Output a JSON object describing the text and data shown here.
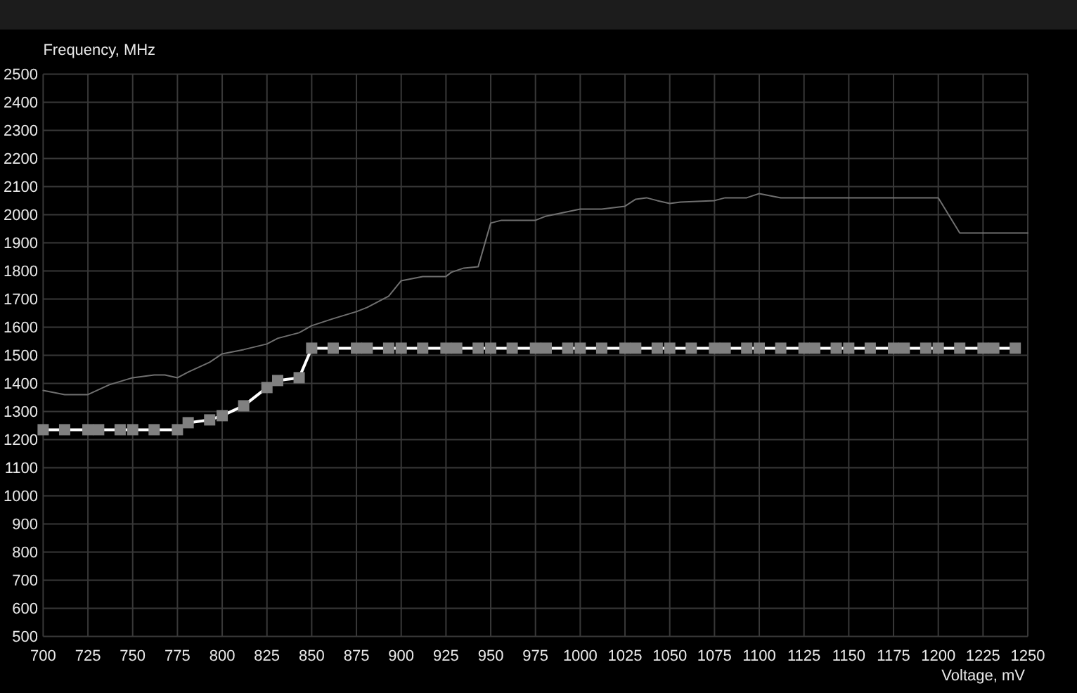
{
  "chart_data": {
    "type": "line",
    "xlabel": "Voltage, mV",
    "ylabel": "Frequency, MHz",
    "xlim": [
      700,
      1250
    ],
    "xticks": [
      700,
      725,
      750,
      775,
      800,
      825,
      850,
      875,
      900,
      925,
      950,
      975,
      1000,
      1025,
      1050,
      1075,
      1100,
      1125,
      1150,
      1175,
      1200,
      1225,
      1250
    ],
    "ylim": [
      500,
      2500
    ],
    "yticks": [
      500,
      600,
      700,
      800,
      900,
      1000,
      1100,
      1200,
      1300,
      1400,
      1500,
      1600,
      1700,
      1800,
      1900,
      2000,
      2100,
      2200,
      2300,
      2400,
      2500
    ],
    "grid": true,
    "series": [
      {
        "color": "#707070",
        "x": [
          700,
          712,
          725,
          737,
          750,
          762,
          768,
          775,
          781,
          793,
          800,
          812,
          825,
          831,
          843,
          850,
          862,
          875,
          881,
          893,
          900,
          912,
          925,
          928,
          935,
          943,
          950,
          956,
          975,
          981,
          1000,
          1012,
          1025,
          1031,
          1037,
          1043,
          1050,
          1056,
          1075,
          1081,
          1093,
          1100,
          1112,
          1200,
          1212,
          1250
        ],
        "values": [
          1375,
          1360,
          1360,
          1395,
          1420,
          1430,
          1430,
          1420,
          1440,
          1475,
          1505,
          1520,
          1540,
          1560,
          1580,
          1605,
          1630,
          1655,
          1670,
          1710,
          1765,
          1780,
          1780,
          1795,
          1810,
          1815,
          1970,
          1980,
          1980,
          1995,
          2020,
          2020,
          2030,
          2055,
          2060,
          2050,
          2040,
          2045,
          2050,
          2060,
          2060,
          2075,
          2060,
          2060,
          1935,
          1935
        ]
      },
      {
        "color": "#ffffff",
        "marker": "square",
        "x": [
          700,
          712,
          725,
          731,
          743,
          750,
          762,
          775,
          781,
          793,
          800,
          812,
          825,
          831,
          843,
          850,
          862,
          875,
          881,
          893,
          900,
          912,
          925,
          931,
          943,
          950,
          962,
          975,
          981,
          993,
          1000,
          1012,
          1025,
          1031,
          1043,
          1050,
          1062,
          1075,
          1081,
          1093,
          1100,
          1112,
          1125,
          1131,
          1143,
          1150,
          1162,
          1175,
          1181,
          1193,
          1200,
          1212,
          1225,
          1231,
          1243
        ],
        "values": [
          1235,
          1235,
          1235,
          1235,
          1235,
          1235,
          1235,
          1235,
          1260,
          1270,
          1285,
          1320,
          1385,
          1410,
          1420,
          1525,
          1525,
          1525,
          1525,
          1525,
          1525,
          1525,
          1525,
          1525,
          1525,
          1525,
          1525,
          1525,
          1525,
          1525,
          1525,
          1525,
          1525,
          1525,
          1525,
          1525,
          1525,
          1525,
          1525,
          1525,
          1525,
          1525,
          1525,
          1525,
          1525,
          1525,
          1525,
          1525,
          1525,
          1525,
          1525,
          1525,
          1525,
          1525,
          1525
        ],
        "colors": [
          "#808080",
          "#808080",
          "#808080",
          "#808080",
          "#808080",
          "#808080",
          "#808080",
          "#808080",
          "#808080",
          "#808080",
          "#808080",
          "#808080",
          "#808080",
          "#808080",
          "#808080",
          "#808080",
          "#808080",
          "#808080",
          "#808080",
          "#808080",
          "#808080",
          "#808080",
          "#808080",
          "#808080",
          "#808080",
          "#808080",
          "#808080",
          "#808080",
          "#808080",
          "#808080",
          "#808080",
          "#808080",
          "#808080",
          "#808080",
          "#808080",
          "#808080",
          "#808080",
          "#808080",
          "#808080",
          "#808080",
          "#808080",
          "#808080",
          "#808080",
          "#808080",
          "#808080",
          "#808080",
          "#808080",
          "#808080",
          "#808080",
          "#808080",
          "#808080",
          "#808080",
          "#808080",
          "#808080",
          "#808080"
        ]
      }
    ]
  }
}
